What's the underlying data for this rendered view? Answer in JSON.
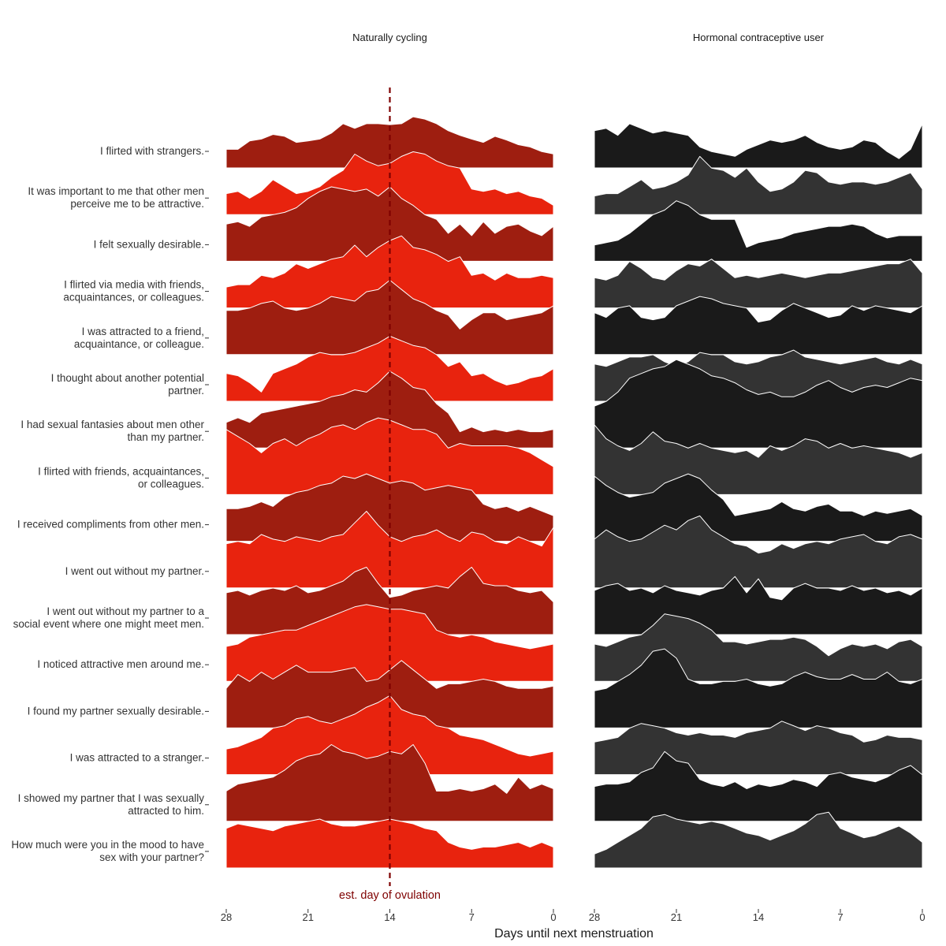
{
  "chart_data": {
    "type": "area",
    "subtype": "ridgeline",
    "xlabel": "Days until next menstruation",
    "x_reversed": true,
    "xlim": [
      28,
      0
    ],
    "x_ticks": [
      28,
      21,
      14,
      7,
      0
    ],
    "x": [
      28,
      27,
      26,
      25,
      24,
      23,
      22,
      21,
      20,
      19,
      18,
      17,
      16,
      15,
      14,
      13,
      12,
      11,
      10,
      9,
      8,
      7,
      6,
      5,
      4,
      3,
      2,
      1,
      0
    ],
    "annotation": {
      "x": 14,
      "label": "est. day of ovulation",
      "color": "#7f0000",
      "style": "dashed"
    },
    "facets": [
      {
        "name": "Naturally cycling",
        "colors": [
          "#9e1e10",
          "#e8230e"
        ]
      },
      {
        "name": "Hormonal contraceptive user",
        "colors": [
          "#1a1a1a",
          "#333333"
        ]
      }
    ],
    "items": [
      {
        "label": "I flirted with strangers.",
        "nc": [
          0.4,
          0.4,
          0.58,
          0.62,
          0.72,
          0.68,
          0.55,
          0.58,
          0.62,
          0.75,
          0.95,
          0.85,
          0.95,
          0.95,
          0.93,
          0.95,
          1.1,
          1.05,
          0.95,
          0.8,
          0.7,
          0.62,
          0.55,
          0.68,
          0.6,
          0.5,
          0.45,
          0.35,
          0.3
        ],
        "hc": [
          0.8,
          0.85,
          0.7,
          0.95,
          0.85,
          0.75,
          0.8,
          0.75,
          0.7,
          0.45,
          0.35,
          0.3,
          0.25,
          0.4,
          0.5,
          0.6,
          0.55,
          0.6,
          0.7,
          0.55,
          0.45,
          0.4,
          0.45,
          0.6,
          0.55,
          0.35,
          0.2,
          0.4,
          0.95
        ]
      },
      {
        "label": "It was important to me that other men perceive me to be attractive.",
        "nc": [
          0.45,
          0.5,
          0.35,
          0.5,
          0.75,
          0.6,
          0.45,
          0.5,
          0.6,
          0.8,
          0.95,
          1.3,
          1.15,
          1.05,
          1.1,
          1.25,
          1.35,
          1.3,
          1.15,
          1.05,
          1.0,
          0.55,
          0.5,
          0.55,
          0.45,
          0.5,
          0.4,
          0.35,
          0.2
        ],
        "hc": [
          0.4,
          0.45,
          0.45,
          0.6,
          0.75,
          0.55,
          0.6,
          0.7,
          0.85,
          1.25,
          1.0,
          0.95,
          0.8,
          1.0,
          0.7,
          0.5,
          0.55,
          0.7,
          0.95,
          0.9,
          0.7,
          0.65,
          0.7,
          0.7,
          0.65,
          0.7,
          0.8,
          0.9,
          0.55
        ]
      },
      {
        "label": "I felt sexually desirable.",
        "nc": [
          0.8,
          0.85,
          0.75,
          0.95,
          1.0,
          1.05,
          1.15,
          1.35,
          1.5,
          1.6,
          1.55,
          1.5,
          1.55,
          1.4,
          1.6,
          1.35,
          1.2,
          1.0,
          0.9,
          0.6,
          0.8,
          0.55,
          0.85,
          0.6,
          0.75,
          0.8,
          0.65,
          0.55,
          0.75
        ],
        "hc": [
          0.35,
          0.4,
          0.45,
          0.6,
          0.8,
          1.0,
          1.1,
          1.3,
          1.2,
          1.0,
          0.9,
          0.9,
          0.9,
          0.3,
          0.4,
          0.45,
          0.5,
          0.6,
          0.65,
          0.7,
          0.75,
          0.75,
          0.8,
          0.75,
          0.6,
          0.5,
          0.55,
          0.55,
          0.55
        ]
      },
      {
        "label": "I flirted via media with friends, acquaintances, or colleagues.",
        "nc": [
          0.45,
          0.5,
          0.5,
          0.7,
          0.65,
          0.75,
          0.95,
          0.85,
          0.95,
          1.05,
          1.1,
          1.35,
          1.1,
          1.3,
          1.45,
          1.55,
          1.3,
          1.25,
          1.15,
          1.0,
          1.1,
          0.7,
          0.75,
          0.6,
          0.75,
          0.65,
          0.65,
          0.7,
          0.65
        ],
        "hc": [
          0.65,
          0.6,
          0.7,
          1.0,
          0.85,
          0.65,
          0.6,
          0.8,
          0.95,
          0.9,
          1.05,
          0.85,
          0.65,
          0.7,
          0.65,
          0.7,
          0.75,
          0.7,
          0.65,
          0.7,
          0.75,
          0.75,
          0.8,
          0.85,
          0.9,
          0.95,
          0.95,
          1.05,
          0.75
        ]
      },
      {
        "label": "I was attracted to a friend, acquaintance, or colleague.",
        "nc": [
          0.95,
          0.95,
          1.0,
          1.1,
          1.15,
          1.0,
          0.95,
          1.0,
          1.1,
          1.25,
          1.2,
          1.15,
          1.35,
          1.4,
          1.6,
          1.4,
          1.2,
          1.1,
          0.95,
          0.85,
          0.55,
          0.75,
          0.9,
          0.9,
          0.75,
          0.8,
          0.85,
          0.9,
          1.05
        ],
        "hc": [
          0.9,
          0.8,
          1.0,
          1.05,
          0.8,
          0.75,
          0.8,
          1.05,
          1.15,
          1.25,
          1.2,
          1.1,
          1.05,
          1.0,
          0.7,
          0.75,
          0.95,
          1.1,
          1.0,
          0.9,
          0.8,
          0.85,
          1.05,
          0.95,
          1.05,
          1.0,
          0.95,
          0.9,
          1.05
        ]
      },
      {
        "label": "I thought about another potential partner.",
        "nc": [
          0.6,
          0.55,
          0.4,
          0.2,
          0.6,
          0.7,
          0.8,
          0.95,
          1.05,
          1.0,
          1.0,
          1.05,
          1.15,
          1.25,
          1.4,
          1.3,
          1.2,
          1.15,
          1.0,
          0.75,
          0.85,
          0.55,
          0.6,
          0.45,
          0.35,
          0.4,
          0.5,
          0.55,
          0.7
        ],
        "hc": [
          0.8,
          0.75,
          0.85,
          0.95,
          0.95,
          1.0,
          0.85,
          0.75,
          0.85,
          1.05,
          1.0,
          1.0,
          0.85,
          0.8,
          0.85,
          0.95,
          1.0,
          1.1,
          0.95,
          0.9,
          0.85,
          0.8,
          0.85,
          0.9,
          0.95,
          0.85,
          0.8,
          0.9,
          0.8
        ]
      },
      {
        "label": "I had sexual fantasies about men other than my partner.",
        "nc": [
          0.55,
          0.65,
          0.55,
          0.75,
          0.8,
          0.85,
          0.9,
          0.95,
          1.0,
          1.1,
          1.15,
          1.25,
          1.2,
          1.4,
          1.65,
          1.5,
          1.3,
          1.25,
          0.95,
          0.75,
          0.35,
          0.45,
          0.35,
          0.4,
          0.35,
          0.4,
          0.35,
          0.35,
          0.4
        ],
        "hc": [
          0.9,
          1.0,
          1.2,
          1.5,
          1.6,
          1.7,
          1.75,
          1.9,
          1.8,
          1.7,
          1.55,
          1.5,
          1.4,
          1.25,
          1.15,
          1.2,
          1.1,
          1.1,
          1.2,
          1.35,
          1.45,
          1.3,
          1.2,
          1.3,
          1.35,
          1.3,
          1.4,
          1.5,
          1.45
        ]
      },
      {
        "label": "I flirted with friends, acquaintances, or colleagues.",
        "nc": [
          1.4,
          1.25,
          1.1,
          0.9,
          1.1,
          1.2,
          1.05,
          1.2,
          1.3,
          1.45,
          1.5,
          1.4,
          1.55,
          1.65,
          1.6,
          1.5,
          1.4,
          1.4,
          1.3,
          1.0,
          1.1,
          1.05,
          1.05,
          1.05,
          1.05,
          1.0,
          0.9,
          0.75,
          0.6
        ],
        "hc": [
          1.5,
          1.2,
          1.05,
          0.95,
          1.1,
          1.35,
          1.15,
          1.1,
          1.0,
          1.1,
          1.0,
          0.95,
          0.9,
          0.95,
          0.8,
          1.05,
          0.95,
          1.05,
          1.2,
          1.15,
          1.0,
          1.1,
          1.0,
          1.05,
          1.0,
          0.95,
          0.9,
          0.8,
          0.9
        ]
      },
      {
        "label": "I received compliments from other men.",
        "nc": [
          0.7,
          0.7,
          0.75,
          0.85,
          0.75,
          0.95,
          1.05,
          1.1,
          1.2,
          1.25,
          1.4,
          1.35,
          1.45,
          1.35,
          1.25,
          1.3,
          1.25,
          1.1,
          1.15,
          1.2,
          1.15,
          1.1,
          0.8,
          0.7,
          0.75,
          0.65,
          0.75,
          0.65,
          0.55
        ],
        "hc": [
          1.4,
          1.2,
          1.05,
          0.95,
          1.0,
          1.05,
          1.25,
          1.35,
          1.45,
          1.35,
          1.1,
          0.9,
          0.55,
          0.6,
          0.65,
          0.7,
          0.85,
          0.7,
          0.65,
          0.75,
          0.8,
          0.65,
          0.65,
          0.55,
          0.65,
          0.6,
          0.65,
          0.7,
          0.55
        ]
      },
      {
        "label": "I went out without my partner.",
        "nc": [
          0.95,
          1.0,
          0.95,
          1.15,
          1.05,
          1.0,
          1.1,
          1.05,
          1.0,
          1.1,
          1.15,
          1.4,
          1.65,
          1.35,
          1.1,
          1.0,
          1.1,
          1.15,
          1.25,
          1.1,
          1.0,
          1.2,
          1.15,
          1.0,
          0.95,
          1.1,
          1.0,
          0.9,
          1.3
        ],
        "hc": [
          1.05,
          1.25,
          1.1,
          1.0,
          1.05,
          1.2,
          1.35,
          1.25,
          1.45,
          1.55,
          1.25,
          1.1,
          0.95,
          0.9,
          0.75,
          0.8,
          0.95,
          0.85,
          0.95,
          1.0,
          0.95,
          1.05,
          1.1,
          1.15,
          1.0,
          0.95,
          1.1,
          1.15,
          1.05
        ]
      },
      {
        "label": "I went out without my partner to a social event where one might meet men.",
        "nc": [
          0.9,
          0.95,
          0.85,
          0.95,
          1.0,
          0.95,
          1.05,
          0.9,
          0.95,
          1.05,
          1.15,
          1.35,
          1.45,
          1.1,
          0.8,
          0.85,
          0.95,
          1.0,
          1.05,
          1.0,
          1.25,
          1.45,
          1.1,
          1.05,
          1.05,
          0.95,
          0.9,
          0.95,
          0.7
        ],
        "hc": [
          0.95,
          1.05,
          1.1,
          0.95,
          1.0,
          0.9,
          1.05,
          0.95,
          0.9,
          0.85,
          0.95,
          1.0,
          1.25,
          0.9,
          1.2,
          0.8,
          0.75,
          1.0,
          1.1,
          1.0,
          1.0,
          0.95,
          1.05,
          0.95,
          1.0,
          0.9,
          0.95,
          0.85,
          1.0
        ]
      },
      {
        "label": "I noticed attractive men around me.",
        "nc": [
          0.75,
          0.8,
          0.95,
          1.0,
          1.05,
          1.1,
          1.1,
          1.2,
          1.3,
          1.4,
          1.5,
          1.6,
          1.65,
          1.6,
          1.55,
          1.55,
          1.5,
          1.45,
          1.1,
          1.0,
          0.95,
          1.0,
          0.95,
          0.85,
          0.8,
          0.75,
          0.7,
          0.75,
          0.8
        ],
        "hc": [
          0.8,
          0.75,
          0.85,
          0.95,
          1.0,
          1.2,
          1.45,
          1.4,
          1.35,
          1.25,
          1.1,
          0.85,
          0.85,
          0.8,
          0.85,
          0.9,
          0.9,
          0.95,
          0.9,
          0.75,
          0.55,
          0.7,
          0.8,
          0.75,
          0.8,
          0.7,
          0.85,
          0.9,
          0.75
        ]
      },
      {
        "label": "I found my partner sexually desirable.",
        "nc": [
          0.85,
          1.15,
          1.0,
          1.2,
          1.05,
          1.2,
          1.35,
          1.2,
          1.2,
          1.2,
          1.25,
          1.3,
          1.0,
          1.05,
          1.25,
          1.45,
          1.25,
          1.05,
          0.85,
          0.95,
          0.95,
          1.0,
          1.05,
          1.0,
          0.9,
          0.85,
          0.85,
          0.85,
          0.9
        ],
        "hc": [
          0.8,
          0.85,
          1.0,
          1.15,
          1.35,
          1.65,
          1.7,
          1.5,
          1.05,
          0.95,
          0.95,
          1.0,
          1.0,
          1.05,
          0.95,
          0.9,
          0.95,
          1.1,
          1.2,
          1.1,
          1.05,
          1.05,
          1.15,
          1.05,
          1.05,
          1.2,
          1.0,
          0.95,
          1.05
        ]
      },
      {
        "label": "I was attracted to a stranger.",
        "nc": [
          0.55,
          0.6,
          0.7,
          0.8,
          1.0,
          1.05,
          1.2,
          1.25,
          1.15,
          1.1,
          1.2,
          1.3,
          1.45,
          1.55,
          1.7,
          1.4,
          1.3,
          1.25,
          1.05,
          1.0,
          0.85,
          0.8,
          0.75,
          0.65,
          0.55,
          0.45,
          0.4,
          0.45,
          0.5
        ],
        "hc": [
          0.7,
          0.75,
          0.8,
          1.0,
          1.1,
          1.05,
          1.0,
          0.9,
          0.85,
          0.9,
          0.85,
          0.85,
          0.8,
          0.9,
          0.95,
          1.0,
          1.15,
          1.05,
          0.95,
          1.05,
          1.0,
          0.9,
          0.85,
          0.7,
          0.75,
          0.85,
          0.8,
          0.8,
          0.75
        ]
      },
      {
        "label": "I showed my partner that I was sexually attracted to him.",
        "nc": [
          0.65,
          0.8,
          0.85,
          0.9,
          0.95,
          1.1,
          1.3,
          1.4,
          1.45,
          1.65,
          1.5,
          1.45,
          1.35,
          1.4,
          1.5,
          1.45,
          1.65,
          1.25,
          0.65,
          0.65,
          0.7,
          0.65,
          0.7,
          0.8,
          0.6,
          0.95,
          0.7,
          0.8,
          0.7
        ],
        "hc": [
          0.75,
          0.8,
          0.8,
          0.85,
          1.05,
          1.15,
          1.5,
          1.3,
          1.25,
          0.9,
          0.8,
          0.75,
          0.85,
          0.7,
          0.8,
          0.75,
          0.8,
          0.9,
          0.85,
          0.75,
          1.0,
          1.05,
          0.95,
          0.9,
          0.85,
          0.95,
          1.1,
          1.2,
          1.0
        ]
      },
      {
        "label": "How much were you in the mood to have sex with your partner?",
        "nc": [
          0.85,
          0.95,
          0.9,
          0.85,
          0.8,
          0.9,
          0.95,
          1.0,
          1.05,
          0.95,
          0.9,
          0.9,
          0.95,
          1.0,
          1.05,
          1.0,
          0.95,
          0.85,
          0.8,
          0.55,
          0.45,
          0.4,
          0.45,
          0.45,
          0.5,
          0.55,
          0.45,
          0.55,
          0.45
        ],
        "hc": [
          0.3,
          0.4,
          0.55,
          0.7,
          0.85,
          1.1,
          1.15,
          1.05,
          1.0,
          0.95,
          1.0,
          0.95,
          0.85,
          0.75,
          0.7,
          0.6,
          0.7,
          0.8,
          0.95,
          1.15,
          1.2,
          0.85,
          0.75,
          0.65,
          0.7,
          0.8,
          0.9,
          0.75,
          0.55
        ]
      }
    ]
  }
}
